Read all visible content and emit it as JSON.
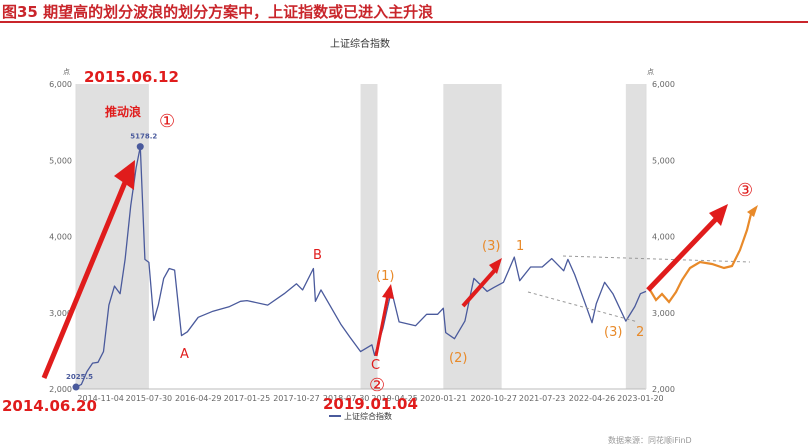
{
  "figure": {
    "title": "图35  期望高的划分波浪的划分方案中，上证指数或已进入主升浪"
  },
  "colors": {
    "title_red": "#c9252b",
    "line": "#4a5a9c",
    "shade": "#e0e0e0",
    "annotation_red": "#e01c1c",
    "annotation_orange": "#e88a2a"
  },
  "chart_data": {
    "type": "line",
    "title": "上证综合指数",
    "series": [
      {
        "name": "上证综合指数",
        "x": [
          "2014-06-20",
          "2014-07-20",
          "2014-08-20",
          "2014-09-20",
          "2014-10-20",
          "2014-11-20",
          "2014-12-20",
          "2015-01-20",
          "2015-02-20",
          "2015-03-20",
          "2015-04-20",
          "2015-05-20",
          "2015-06-12",
          "2015-07-08",
          "2015-07-30",
          "2015-08-26",
          "2015-09-20",
          "2015-10-20",
          "2015-11-20",
          "2015-12-20",
          "2016-01-27",
          "2016-02-29",
          "2016-04-29",
          "2016-07-20",
          "2016-10-20",
          "2016-12-20",
          "2017-01-25",
          "2017-05-20",
          "2017-08-20",
          "2017-10-27",
          "2017-11-30",
          "2018-01-29",
          "2018-02-09",
          "2018-03-12",
          "2018-06-30",
          "2018-08-20",
          "2018-10-18",
          "2018-12-20",
          "2019-01-04",
          "2019-02-20",
          "2019-03-20",
          "2019-04-08",
          "2019-05-20",
          "2019-08-20",
          "2019-10-20",
          "2019-12-20",
          "2020-01-21",
          "2020-02-03",
          "2020-03-23",
          "2020-05-20",
          "2020-07-09",
          "2020-09-20",
          "2020-10-27",
          "2020-12-20",
          "2021-02-18",
          "2021-03-20",
          "2021-05-20",
          "2021-07-23",
          "2021-09-14",
          "2021-11-20",
          "2021-12-13",
          "2022-01-20",
          "2022-03-15",
          "2022-04-26",
          "2022-05-20",
          "2022-07-05",
          "2022-08-20",
          "2022-10-31",
          "2022-12-20",
          "2023-01-20",
          "2023-02-20"
        ],
        "values": [
          2025.5,
          2060,
          2230,
          2340,
          2350,
          2490,
          3100,
          3350,
          3250,
          3700,
          4400,
          4900,
          5178.2,
          3700,
          3660,
          2900,
          3100,
          3450,
          3580,
          3560,
          2700,
          2750,
          2940,
          3020,
          3080,
          3150,
          3160,
          3100,
          3250,
          3380,
          3300,
          3580,
          3150,
          3300,
          2850,
          2680,
          2490,
          2580,
          2440.9,
          2800,
          3100,
          3290,
          2880,
          2830,
          2980,
          2980,
          3060,
          2740,
          2660,
          2890,
          3450,
          3280,
          3330,
          3400,
          3730,
          3420,
          3600,
          3600,
          3710,
          3550,
          3700,
          3500,
          3150,
          2870,
          3120,
          3400,
          3250,
          2890,
          3080,
          3250,
          3280
        ]
      }
    ],
    "x_ticks": [
      "2014-11-04",
      "2015-07-30",
      "2016-04-29",
      "2017-01-25",
      "2017-10-27",
      "2018-07-30",
      "2019-04-25",
      "2020-01-21",
      "2020-10-27",
      "2021-07-23",
      "2022-04-26",
      "2023-01-20"
    ],
    "y_ticks": [
      "2,000",
      "3,000",
      "4,000",
      "5,000",
      "6,000"
    ],
    "ylim": [
      2000,
      6000
    ],
    "y_unit": "点",
    "shaded_periods": [
      [
        "2014-06-20",
        "2015-07-30"
      ],
      [
        "2018-10-18",
        "2019-01-20"
      ],
      [
        "2020-01-21",
        "2020-12-10"
      ],
      [
        "2022-10-31",
        "2023-02-20"
      ]
    ],
    "legend_position": "bottom",
    "point_labels": [
      {
        "x": "2014-06-20",
        "label": "2025.5"
      },
      {
        "x": "2015-06-12",
        "label": "5178.2"
      }
    ],
    "annotations": [
      {
        "key": "ann_20150612",
        "text": "2015.06.12"
      },
      {
        "key": "ann_impulse",
        "text": "推动浪"
      },
      {
        "key": "ann_c1",
        "text": "①"
      },
      {
        "key": "ann_A",
        "text": "A"
      },
      {
        "key": "ann_B",
        "text": "B"
      },
      {
        "key": "ann_C",
        "text": "C"
      },
      {
        "key": "ann_1p",
        "text": "(1)"
      },
      {
        "key": "ann_2p",
        "text": "(2)"
      },
      {
        "key": "ann_3p",
        "text": "(3)"
      },
      {
        "key": "ann_1",
        "text": "1"
      },
      {
        "key": "ann_3p_b",
        "text": "(3)"
      },
      {
        "key": "ann_2",
        "text": "2"
      },
      {
        "key": "ann_c3",
        "text": "③"
      },
      {
        "key": "ann_20190104",
        "text": "2019.01.04"
      },
      {
        "key": "ann_c2",
        "text": "②"
      },
      {
        "key": "ann_20140620",
        "text": "2014.06.20"
      }
    ],
    "source": "数据来源：同花顺iFinD"
  }
}
